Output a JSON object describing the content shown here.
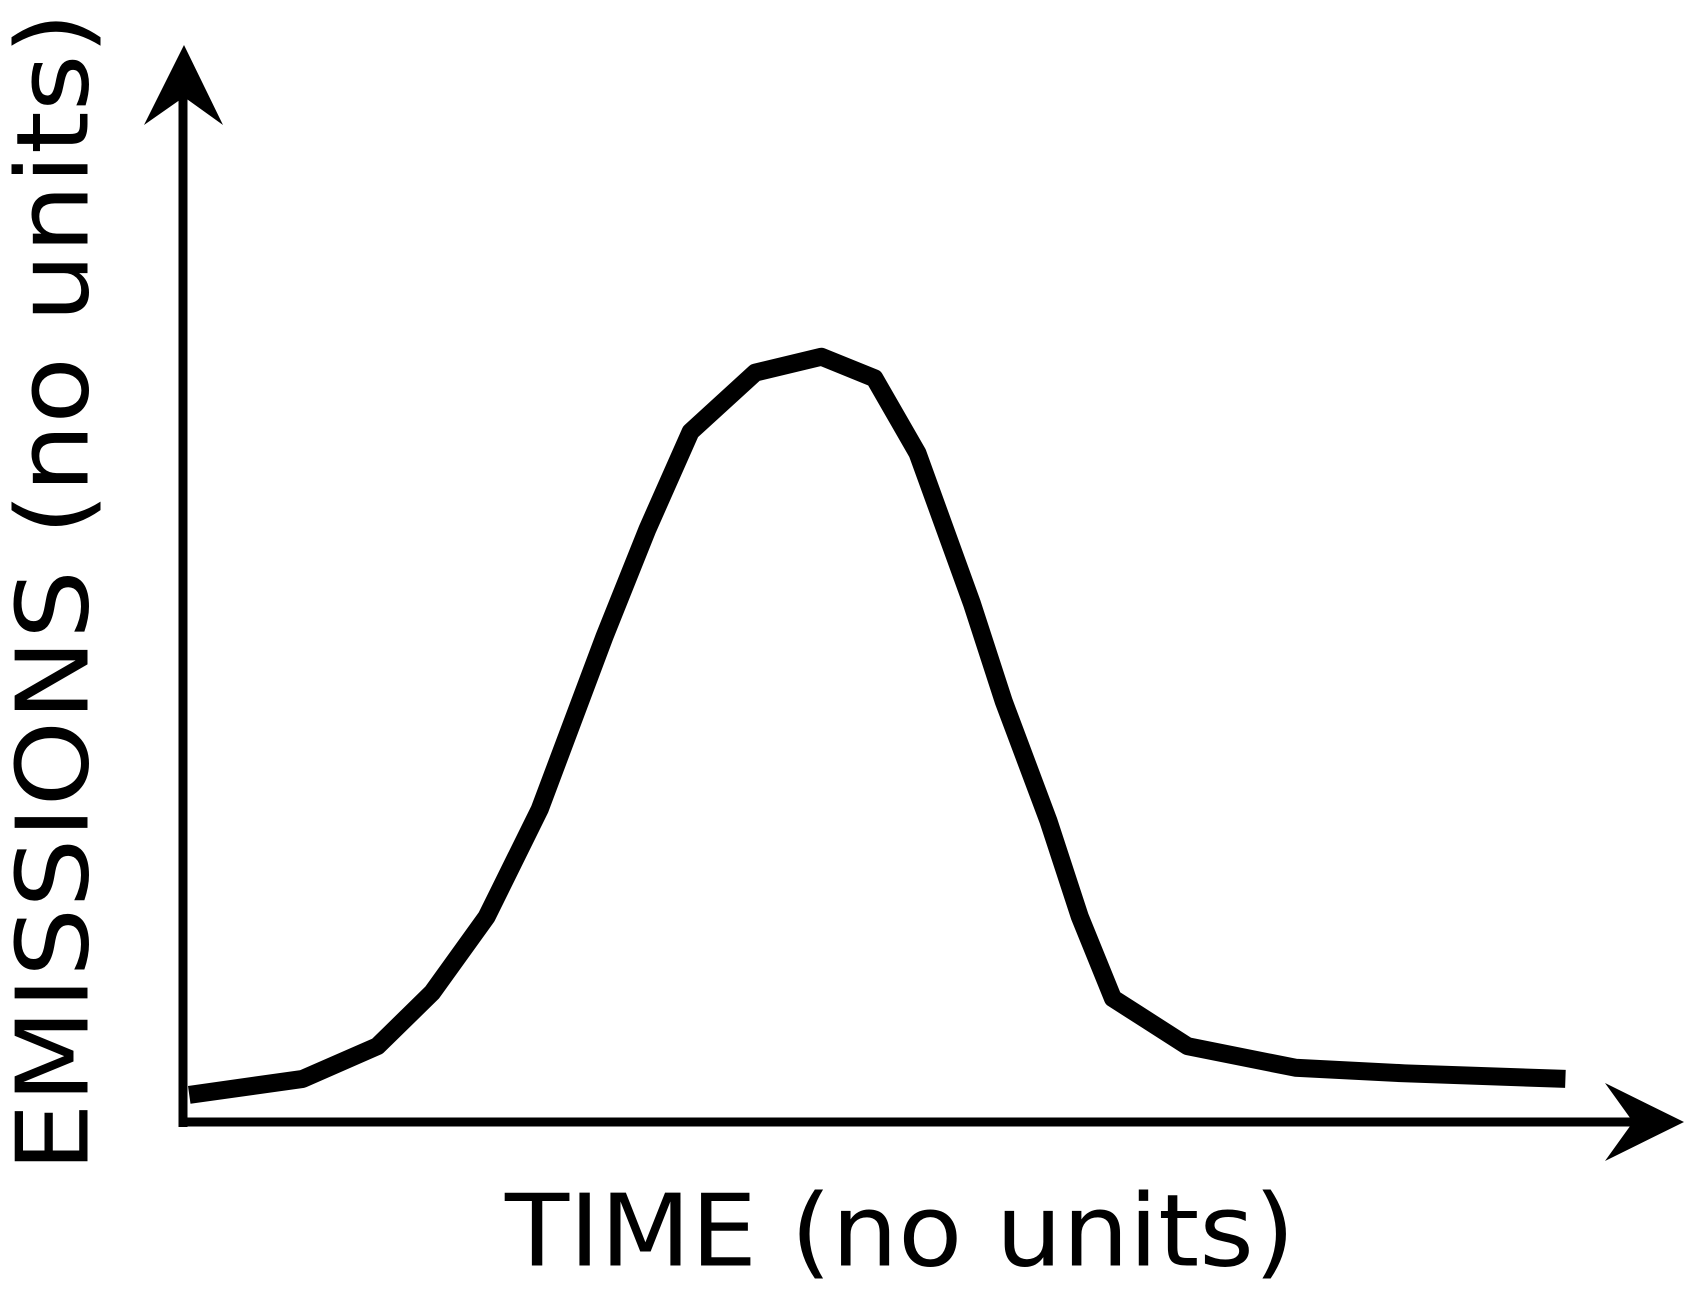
{
  "chart_data": {
    "type": "line",
    "xlabel": "TIME (no units)",
    "ylabel": "EMISSIONS (no units)",
    "x": [
      0.4,
      8.3,
      13.5,
      17.3,
      21.1,
      24.8,
      29.3,
      32.3,
      35.3,
      39.8,
      44.4,
      48.1,
      51.1,
      54.9,
      57.1,
      60.2,
      62.4,
      64.7,
      69.9,
      77.4,
      85.0,
      96.2
    ],
    "series": [
      {
        "color": "#000000",
        "values": [
          3.4,
          5.4,
          9.5,
          16.2,
          25.7,
          39.2,
          60.8,
          74.3,
          86.5,
          93.9,
          95.9,
          93.2,
          83.8,
          64.9,
          52.7,
          37.8,
          25.7,
          15.5,
          9.5,
          6.8,
          6.1,
          5.4
        ]
      }
    ],
    "xlim": [
      0,
      100
    ],
    "ylim": [
      0,
      100
    ]
  }
}
